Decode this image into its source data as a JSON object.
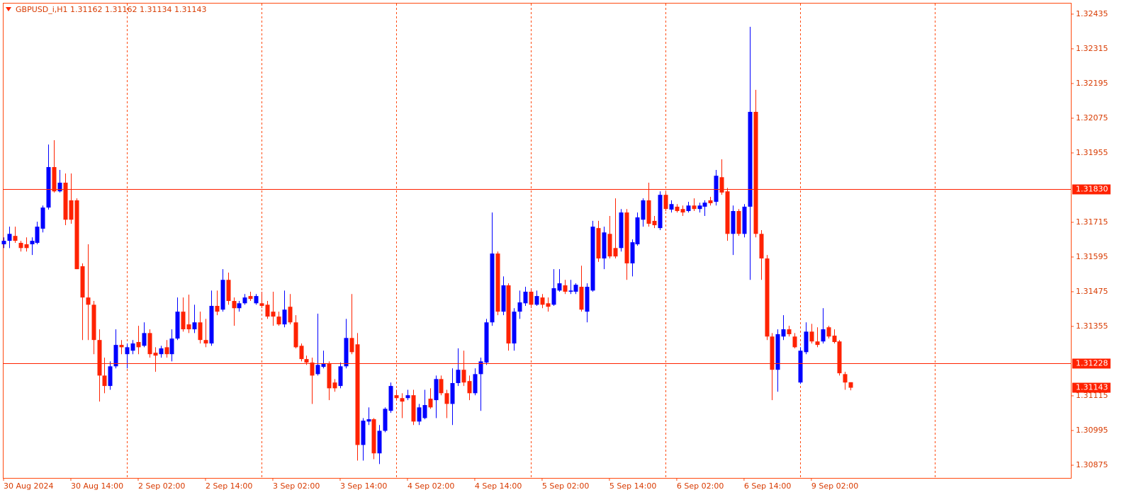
{
  "chart_data": {
    "type": "candlestick",
    "title": "GBPUSD_i,H1  1.31162 1.31162 1.31134 1.31143",
    "categories": [
      "30 Aug 2024",
      null,
      null,
      null,
      null,
      null,
      null,
      null,
      null,
      null,
      null,
      null,
      "30 Aug 14:00",
      null,
      null,
      null,
      null,
      null,
      null,
      null,
      null,
      null,
      null,
      null,
      "2 Sep 02:00",
      null,
      null,
      null,
      null,
      null,
      null,
      null,
      null,
      null,
      null,
      null,
      "2 Sep 14:00",
      null,
      null,
      null,
      null,
      null,
      null,
      null,
      null,
      null,
      null,
      null,
      "3 Sep 02:00",
      null,
      null,
      null,
      null,
      null,
      null,
      null,
      null,
      null,
      null,
      null,
      "3 Sep 14:00",
      null,
      null,
      null,
      null,
      null,
      null,
      null,
      null,
      null,
      null,
      null,
      "4 Sep 02:00",
      null,
      null,
      null,
      null,
      null,
      null,
      null,
      null,
      null,
      null,
      null,
      "4 Sep 14:00",
      null,
      null,
      null,
      null,
      null,
      null,
      null,
      null,
      null,
      null,
      null,
      "5 Sep 02:00",
      null,
      null,
      null,
      null,
      null,
      null,
      null,
      null,
      null,
      null,
      null,
      "5 Sep 14:00",
      null,
      null,
      null,
      null,
      null,
      null,
      null,
      null,
      null,
      null,
      null,
      "6 Sep 02:00",
      null,
      null,
      null,
      null,
      null,
      null,
      null,
      null,
      null,
      null,
      null,
      "6 Sep 14:00",
      null,
      null,
      null,
      null,
      null,
      null,
      null,
      null,
      null,
      null,
      null,
      "9 Sep 02:00",
      null,
      null,
      null,
      null,
      null,
      null,
      null
    ],
    "open": [
      1.31639,
      1.31651,
      1.31668,
      1.31644,
      1.31639,
      1.31639,
      1.31644,
      1.31693,
      1.31766,
      1.31906,
      1.31822,
      1.31852,
      1.31791,
      1.31791,
      1.31563,
      1.31455,
      1.3143,
      1.31308,
      1.31185,
      1.31149,
      1.31217,
      1.31291,
      1.31259,
      1.31271,
      1.31301,
      1.31288,
      1.31332,
      1.31264,
      1.31259,
      1.31283,
      1.31259,
      1.31313,
      1.31406,
      1.31362,
      1.31345,
      1.31369,
      1.31308,
      1.31296,
      1.31426,
      1.31413,
      1.31516,
      1.31443,
      1.31418,
      1.31435,
      1.3146,
      1.31435,
      1.31435,
      1.3143,
      1.31406,
      1.31389,
      1.31362,
      1.31423,
      1.31369,
      1.31288,
      1.31242,
      1.3123,
      1.3119,
      1.31215,
      1.31227,
      1.31161,
      1.31149,
      1.31217,
      1.31315,
      1.31293,
      1.30945,
      1.31026,
      1.31034,
      1.30916,
      1.30994,
      1.31063,
      1.31117,
      1.31107,
      1.31107,
      1.31117,
      1.31026,
      1.31038,
      1.31105,
      1.311,
      1.31173,
      1.31124,
      1.31087,
      1.31159,
      1.31205,
      1.31166,
      1.31124,
      1.3119,
      1.3123,
      1.31369,
      1.31607,
      1.31406,
      1.31497,
      1.31296,
      1.31406,
      1.31435,
      1.31475,
      1.3143,
      1.31455,
      1.31435,
      1.3143,
      1.31479,
      1.31497,
      1.31475,
      1.31475,
      1.31492,
      1.31406,
      1.31479,
      1.31695,
      1.3159,
      1.31675,
      1.31626,
      1.31626,
      1.31749,
      1.31573,
      1.31639,
      1.31724,
      1.31791,
      1.3172,
      1.31695,
      1.3181,
      1.31759,
      1.31769,
      1.31761,
      1.31754,
      1.31773,
      1.31761,
      1.31769,
      1.31791,
      1.31786,
      1.31871,
      1.31822,
      1.31675,
      1.31754,
      1.31675,
      1.31769,
      1.32097,
      1.31675,
      1.3159,
      1.3132,
      1.31205,
      1.3132,
      1.31345,
      1.3132,
      1.31161,
      1.31266,
      1.31337,
      1.31303,
      1.31303,
      1.31352,
      1.31323,
      1.31303,
      1.3119,
      1.31162
    ],
    "high": [
      1.31663,
      1.317,
      1.317,
      1.31651,
      1.31663,
      1.31663,
      1.31717,
      1.31773,
      1.31984,
      1.31999,
      1.31896,
      1.31884,
      1.31884,
      1.31798,
      1.31573,
      1.31639,
      1.31443,
      1.31345,
      1.31247,
      1.31234,
      1.31345,
      1.31308,
      1.31296,
      1.31308,
      1.31357,
      1.31369,
      1.31345,
      1.31283,
      1.31288,
      1.31308,
      1.31345,
      1.31455,
      1.31455,
      1.31465,
      1.3143,
      1.31406,
      1.31381,
      1.31479,
      1.31479,
      1.31553,
      1.31541,
      1.31455,
      1.31443,
      1.31467,
      1.31475,
      1.31467,
      1.31475,
      1.31443,
      1.31475,
      1.31406,
      1.31479,
      1.31467,
      1.31394,
      1.31296,
      1.31254,
      1.31247,
      1.31399,
      1.31271,
      1.31234,
      1.31173,
      1.3123,
      1.31381,
      1.31467,
      1.31332,
      1.31038,
      1.31075,
      1.31038,
      1.31014,
      1.31075,
      1.31161,
      1.31136,
      1.31124,
      1.31136,
      1.31136,
      1.31087,
      1.31136,
      1.31141,
      1.31185,
      1.31185,
      1.31136,
      1.3121,
      1.31279,
      1.31271,
      1.31185,
      1.3121,
      1.31247,
      1.31381,
      1.31749,
      1.31614,
      1.31528,
      1.31504,
      1.31418,
      1.31479,
      1.31492,
      1.31487,
      1.31479,
      1.31467,
      1.31455,
      1.31553,
      1.31553,
      1.31516,
      1.31516,
      1.31504,
      1.31565,
      1.31504,
      1.3172,
      1.3172,
      1.317,
      1.31737,
      1.31798,
      1.31761,
      1.31761,
      1.31656,
      1.31749,
      1.31798,
      1.31852,
      1.31737,
      1.31822,
      1.31818,
      1.31791,
      1.31778,
      1.31773,
      1.31786,
      1.31798,
      1.31783,
      1.31791,
      1.31803,
      1.31896,
      1.31933,
      1.31834,
      1.31773,
      1.31761,
      1.31778,
      1.32391,
      1.32173,
      1.31688,
      1.31602,
      1.31332,
      1.31345,
      1.31394,
      1.31357,
      1.31332,
      1.31283,
      1.31369,
      1.31364,
      1.31352,
      1.31418,
      1.31357,
      1.31345,
      1.31308,
      1.31198,
      1.31162
    ],
    "low": [
      1.31626,
      1.31626,
      1.31644,
      1.31614,
      1.31614,
      1.31602,
      1.31639,
      1.3168,
      1.31759,
      1.31818,
      1.31818,
      1.31705,
      1.3171,
      1.31553,
      1.31308,
      1.31308,
      1.31259,
      1.31095,
      1.31124,
      1.31136,
      1.3121,
      1.31259,
      1.3121,
      1.31259,
      1.31259,
      1.31283,
      1.31247,
      1.31198,
      1.31247,
      1.31247,
      1.31234,
      1.31308,
      1.31337,
      1.31332,
      1.31332,
      1.31296,
      1.31283,
      1.31288,
      1.31394,
      1.31406,
      1.3143,
      1.31357,
      1.31406,
      1.3143,
      1.31443,
      1.3143,
      1.31418,
      1.31381,
      1.31357,
      1.31357,
      1.31352,
      1.31362,
      1.31279,
      1.31234,
      1.31222,
      1.31087,
      1.31185,
      1.3121,
      1.311,
      1.31129,
      1.31141,
      1.3121,
      1.31259,
      1.30891,
      1.30891,
      1.31014,
      1.30896,
      1.30879,
      1.30989,
      1.31056,
      1.311,
      1.31038,
      1.311,
      1.31014,
      1.31014,
      1.31034,
      1.3107,
      1.31038,
      1.31117,
      1.31038,
      1.31014,
      1.31149,
      1.31149,
      1.311,
      1.31117,
      1.31063,
      1.31222,
      1.31357,
      1.31394,
      1.31394,
      1.31271,
      1.31271,
      1.31381,
      1.31426,
      1.31418,
      1.31426,
      1.31418,
      1.31406,
      1.31426,
      1.31475,
      1.31467,
      1.31467,
      1.31467,
      1.31406,
      1.31369,
      1.31475,
      1.31578,
      1.31553,
      1.3159,
      1.3159,
      1.31614,
      1.31516,
      1.31528,
      1.31634,
      1.317,
      1.317,
      1.31695,
      1.31688,
      1.31754,
      1.31749,
      1.31749,
      1.31737,
      1.31749,
      1.31754,
      1.31749,
      1.31737,
      1.31773,
      1.31773,
      1.3181,
      1.31651,
      1.31602,
      1.31668,
      1.31663,
      1.31516,
      1.31663,
      1.31516,
      1.31308,
      1.311,
      1.31129,
      1.31308,
      1.3132,
      1.31279,
      1.31156,
      1.31259,
      1.31296,
      1.31283,
      1.31296,
      1.31313,
      1.31296,
      1.31185,
      1.31136,
      1.31134
    ],
    "close": [
      1.31651,
      1.31675,
      1.31651,
      1.31626,
      1.31626,
      1.31651,
      1.317,
      1.31766,
      1.31906,
      1.31822,
      1.31852,
      1.31724,
      1.31724,
      1.31553,
      1.31455,
      1.3143,
      1.31308,
      1.31185,
      1.31149,
      1.31217,
      1.31291,
      1.31283,
      1.31283,
      1.31296,
      1.31283,
      1.31332,
      1.31259,
      1.31254,
      1.31279,
      1.31259,
      1.31313,
      1.31406,
      1.31345,
      1.31345,
      1.31369,
      1.31308,
      1.31296,
      1.31426,
      1.31406,
      1.31516,
      1.31443,
      1.31418,
      1.31435,
      1.31455,
      1.3145,
      1.3146,
      1.31426,
      1.31389,
      1.31389,
      1.31362,
      1.31413,
      1.31369,
      1.31283,
      1.31242,
      1.3123,
      1.31185,
      1.31222,
      1.31227,
      1.31141,
      1.31141,
      1.31217,
      1.31315,
      1.31266,
      1.30945,
      1.31029,
      1.31034,
      1.30916,
      1.30994,
      1.3107,
      1.31149,
      1.31107,
      1.31095,
      1.31117,
      1.31026,
      1.31075,
      1.31083,
      1.31075,
      1.31173,
      1.31124,
      1.31087,
      1.31159,
      1.31205,
      1.31161,
      1.31124,
      1.3119,
      1.31234,
      1.31369,
      1.31607,
      1.31406,
      1.31497,
      1.31296,
      1.31406,
      1.31438,
      1.31475,
      1.3143,
      1.3146,
      1.3143,
      1.31423,
      1.31487,
      1.31504,
      1.31475,
      1.31479,
      1.31499,
      1.31413,
      1.31492,
      1.317,
      1.3159,
      1.3168,
      1.31597,
      1.31597,
      1.31749,
      1.31573,
      1.31646,
      1.31732,
      1.31791,
      1.3171,
      1.31705,
      1.3181,
      1.31761,
      1.31778,
      1.31754,
      1.31749,
      1.31773,
      1.31761,
      1.31773,
      1.31783,
      1.31781,
      1.31876,
      1.31818,
      1.31675,
      1.31754,
      1.31675,
      1.31769,
      1.32097,
      1.31675,
      1.3159,
      1.3132,
      1.31205,
      1.31328,
      1.31345,
      1.31328,
      1.31283,
      1.31271,
      1.31337,
      1.31303,
      1.31291,
      1.31345,
      1.3132,
      1.31301,
      1.31193,
      1.31161,
      1.31143
    ],
    "up_color": "#0000ff",
    "down_color": "#ff2200",
    "xlim": [
      -0.125,
      190.25
    ],
    "separators": [
      22,
      46,
      70,
      94,
      118,
      142,
      166
    ],
    "ylim": [
      1.30831,
      1.32474
    ],
    "yticks": [
      1.32435,
      1.32315,
      1.32195,
      1.32075,
      1.31955,
      1.31715,
      1.31595,
      1.31475,
      1.31355,
      1.31115,
      1.30995,
      1.30875
    ],
    "hlines": [
      {
        "value": 1.3183,
        "label": "1.31830"
      },
      {
        "value": 1.31228,
        "label": "1.31228"
      }
    ],
    "price_tag": 1.31143
  }
}
